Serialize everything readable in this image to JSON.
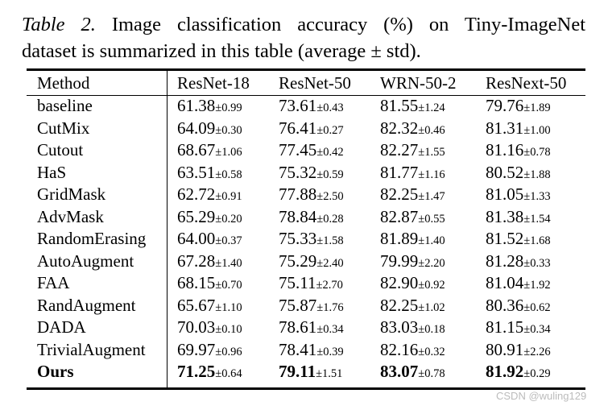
{
  "caption": {
    "label": "Table 2.",
    "line1_text": "Image classification accuracy (%) on Tiny-ImageNet",
    "line2_text": "dataset is summarized in this table (average ± std)."
  },
  "table": {
    "headers": [
      "Method",
      "ResNet-18",
      "ResNet-50",
      "WRN-50-2",
      "ResNext-50"
    ],
    "rows": [
      {
        "method": "baseline",
        "cells": [
          {
            "mean": "61.38",
            "std": "±0.99"
          },
          {
            "mean": "73.61",
            "std": "±0.43"
          },
          {
            "mean": "81.55",
            "std": "±1.24"
          },
          {
            "mean": "79.76",
            "std": "±1.89"
          }
        ]
      },
      {
        "method": "CutMix",
        "cells": [
          {
            "mean": "64.09",
            "std": "±0.30"
          },
          {
            "mean": "76.41",
            "std": "±0.27"
          },
          {
            "mean": "82.32",
            "std": "±0.46"
          },
          {
            "mean": "81.31",
            "std": "±1.00"
          }
        ]
      },
      {
        "method": "Cutout",
        "cells": [
          {
            "mean": "68.67",
            "std": "±1.06"
          },
          {
            "mean": "77.45",
            "std": "±0.42"
          },
          {
            "mean": "82.27",
            "std": "±1.55"
          },
          {
            "mean": "81.16",
            "std": "±0.78"
          }
        ]
      },
      {
        "method": "HaS",
        "cells": [
          {
            "mean": "63.51",
            "std": "±0.58"
          },
          {
            "mean": "75.32",
            "std": "±0.59"
          },
          {
            "mean": "81.77",
            "std": "±1.16"
          },
          {
            "mean": "80.52",
            "std": "±1.88"
          }
        ]
      },
      {
        "method": "GridMask",
        "cells": [
          {
            "mean": "62.72",
            "std": "±0.91"
          },
          {
            "mean": "77.88",
            "std": "±2.50"
          },
          {
            "mean": "82.25",
            "std": "±1.47"
          },
          {
            "mean": "81.05",
            "std": "±1.33"
          }
        ]
      },
      {
        "method": "AdvMask",
        "cells": [
          {
            "mean": "65.29",
            "std": "±0.20"
          },
          {
            "mean": "78.84",
            "std": "±0.28"
          },
          {
            "mean": "82.87",
            "std": "±0.55"
          },
          {
            "mean": "81.38",
            "std": "±1.54"
          }
        ]
      },
      {
        "method": "RandomErasing",
        "cells": [
          {
            "mean": "64.00",
            "std": "±0.37"
          },
          {
            "mean": "75.33",
            "std": "±1.58"
          },
          {
            "mean": "81.89",
            "std": "±1.40"
          },
          {
            "mean": "81.52",
            "std": "±1.68"
          }
        ]
      },
      {
        "method": "AutoAugment",
        "cells": [
          {
            "mean": "67.28",
            "std": "±1.40"
          },
          {
            "mean": "75.29",
            "std": "±2.40"
          },
          {
            "mean": "79.99",
            "std": "±2.20"
          },
          {
            "mean": "81.28",
            "std": "±0.33"
          }
        ]
      },
      {
        "method": "FAA",
        "cells": [
          {
            "mean": "68.15",
            "std": "±0.70"
          },
          {
            "mean": "75.11",
            "std": "±2.70"
          },
          {
            "mean": "82.90",
            "std": "±0.92"
          },
          {
            "mean": "81.04",
            "std": "±1.92"
          }
        ]
      },
      {
        "method": "RandAugment",
        "cells": [
          {
            "mean": "65.67",
            "std": "±1.10"
          },
          {
            "mean": "75.87",
            "std": "±1.76"
          },
          {
            "mean": "82.25",
            "std": "±1.02"
          },
          {
            "mean": "80.36",
            "std": "±0.62"
          }
        ]
      },
      {
        "method": "DADA",
        "cells": [
          {
            "mean": "70.03",
            "std": "±0.10"
          },
          {
            "mean": "78.61",
            "std": "±0.34"
          },
          {
            "mean": "83.03",
            "std": "±0.18"
          },
          {
            "mean": "81.15",
            "std": "±0.34"
          }
        ]
      },
      {
        "method": "TrivialAugment",
        "cells": [
          {
            "mean": "69.97",
            "std": "±0.96"
          },
          {
            "mean": "78.41",
            "std": "±0.39"
          },
          {
            "mean": "82.16",
            "std": "±0.32"
          },
          {
            "mean": "80.91",
            "std": "±2.26"
          }
        ]
      },
      {
        "method": "Ours",
        "bold": true,
        "cells": [
          {
            "mean": "71.25",
            "std": "±0.64"
          },
          {
            "mean": "79.11",
            "std": "±1.51"
          },
          {
            "mean": "83.07",
            "std": "±0.78"
          },
          {
            "mean": "81.92",
            "std": "±0.29"
          }
        ]
      }
    ]
  },
  "watermark": "CSDN @wuling129"
}
